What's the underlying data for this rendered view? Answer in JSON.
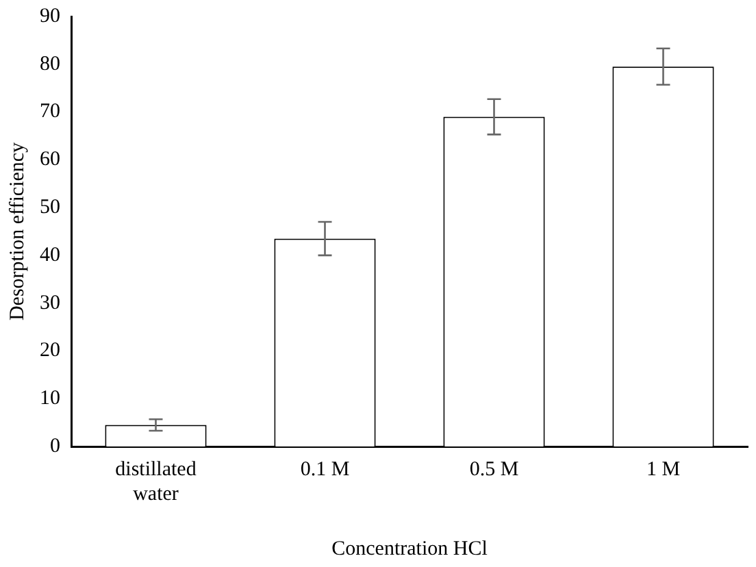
{
  "chart_data": {
    "type": "bar",
    "xlabel": "Concentration HCl",
    "ylabel": "Desorption efficiency",
    "categories": [
      "distillated water",
      "0.1 M",
      "0.5 M",
      "1 M"
    ],
    "values": [
      4.5,
      43.5,
      69,
      79.5
    ],
    "errors": [
      1.2,
      3.5,
      3.7,
      3.8
    ],
    "color": "#ffffff",
    "ylim": [
      0,
      90
    ],
    "yticks": [
      0,
      10,
      20,
      30,
      40,
      50,
      60,
      70,
      80,
      90
    ],
    "grid": false,
    "legend": false
  }
}
